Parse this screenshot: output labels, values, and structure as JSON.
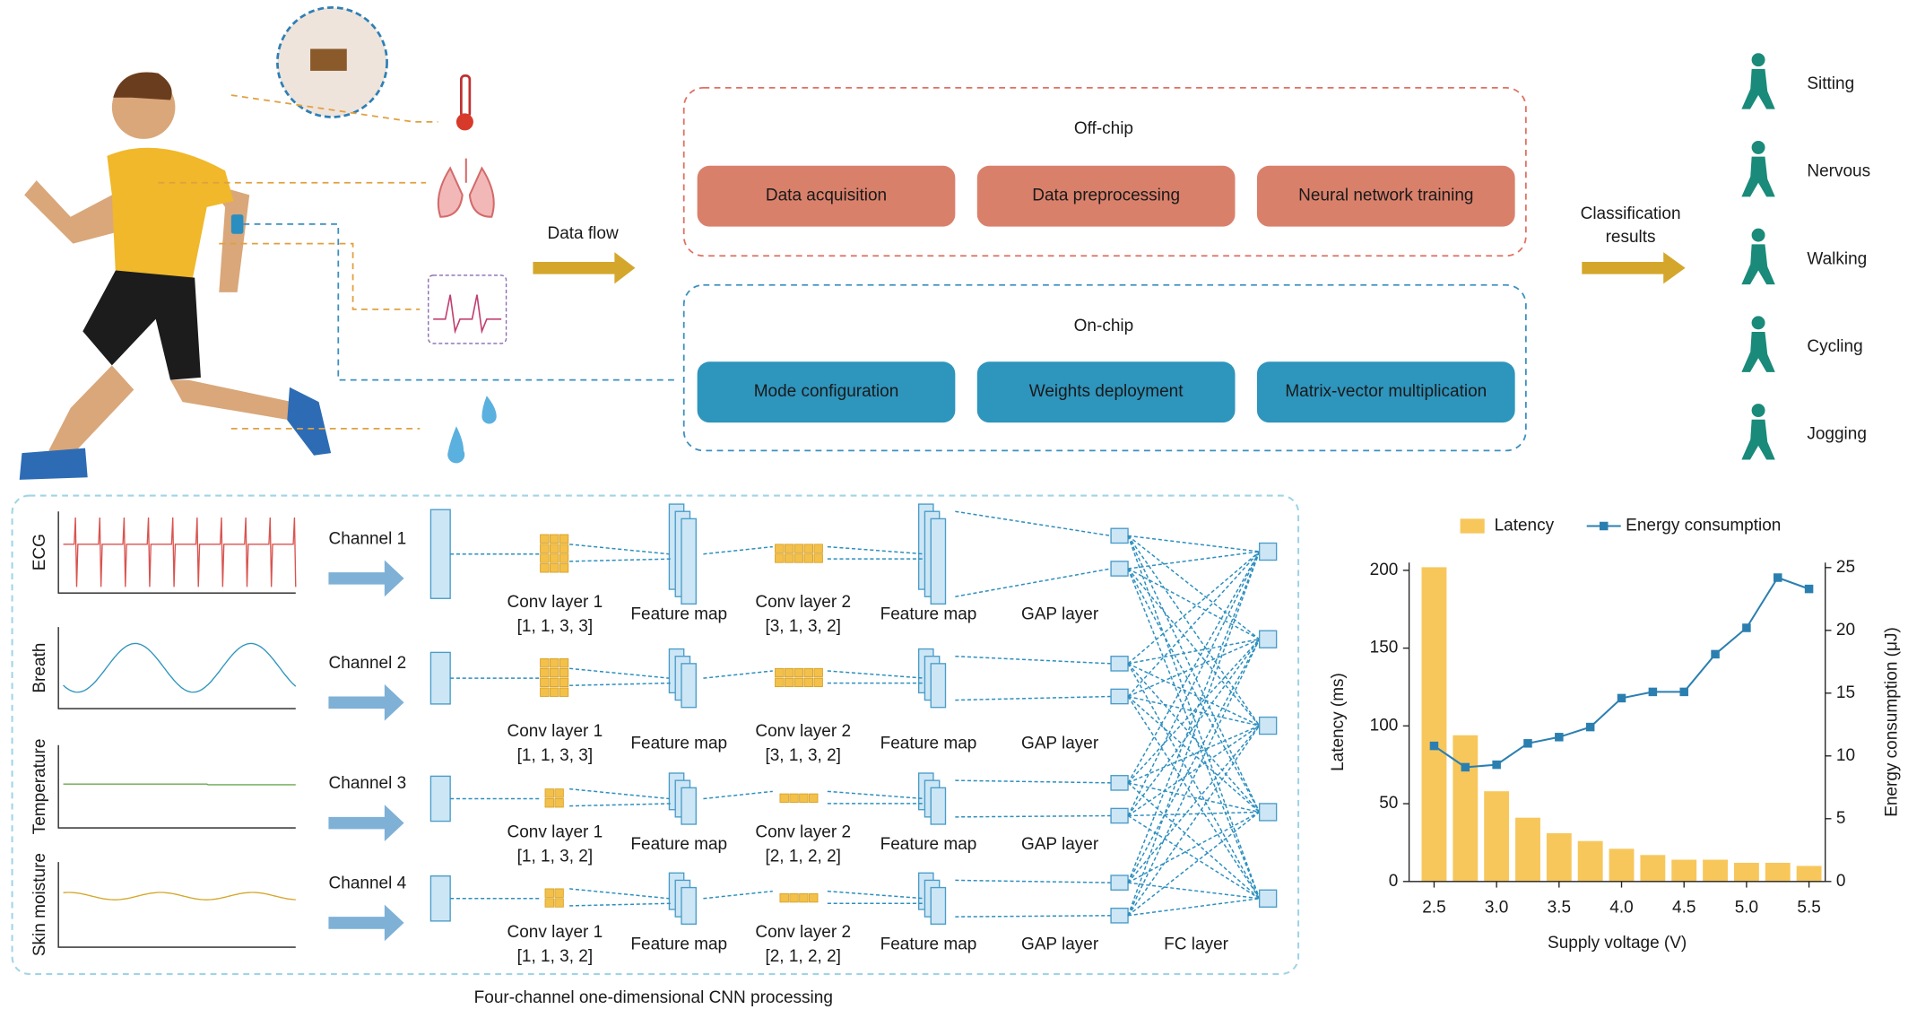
{
  "data_flow": "Data flow",
  "off_chip": {
    "title": "Off-chip",
    "steps": [
      "Data acquisition",
      "Data preprocessing",
      "Neural network training"
    ]
  },
  "on_chip": {
    "title": "On-chip",
    "steps": [
      "Mode configuration",
      "Weights deployment",
      "Matrix-vector multiplication"
    ]
  },
  "classification": {
    "label_lines": [
      "Classification",
      "results"
    ],
    "classes": [
      "Sitting",
      "Nervous",
      "Walking",
      "Cycling",
      "Jogging"
    ]
  },
  "signals": [
    "ECG",
    "Breath",
    "Temperature",
    "Skin moisture"
  ],
  "channels": [
    {
      "name": "Channel 1",
      "conv1": "Conv layer 1",
      "conv1_params": "[1, 1, 3, 3]",
      "feature_map1": "Feature map",
      "conv2": "Conv layer 2",
      "conv2_params": "[3, 1, 3, 2]",
      "feature_map2": "Feature map",
      "gap": "GAP layer"
    },
    {
      "name": "Channel 2",
      "conv1": "Conv layer 1",
      "conv1_params": "[1, 1, 3, 3]",
      "feature_map1": "Feature map",
      "conv2": "Conv layer 2",
      "conv2_params": "[3, 1, 3, 2]",
      "feature_map2": "Feature map",
      "gap": "GAP layer"
    },
    {
      "name": "Channel 3",
      "conv1": "Conv layer 1",
      "conv1_params": "[1, 1, 3, 2]",
      "feature_map1": "Feature map",
      "conv2": "Conv layer 2",
      "conv2_params": "[2, 1, 2, 2]",
      "feature_map2": "Feature map",
      "gap": "GAP layer"
    },
    {
      "name": "Channel 4",
      "conv1": "Conv layer 1",
      "conv1_params": "[1, 1, 3, 2]",
      "feature_map1": "Feature map",
      "conv2": "Conv layer 2",
      "conv2_params": "[2, 1, 2, 2]",
      "feature_map2": "Feature map",
      "gap": "GAP layer"
    }
  ],
  "fc_layer": "FC layer",
  "cnn_caption": "Four-channel one-dimensional CNN processing",
  "chart_data": {
    "type": "bar",
    "x": [
      2.5,
      2.75,
      3.0,
      3.25,
      3.5,
      3.75,
      4.0,
      4.25,
      4.5,
      4.75,
      5.0,
      5.25,
      5.5
    ],
    "series": [
      {
        "name": "Latency",
        "type": "bar",
        "color": "#f7c75c",
        "values": [
          202,
          94,
          58,
          41,
          31,
          26,
          21,
          17,
          14,
          14,
          12,
          12,
          10
        ]
      },
      {
        "name": "Energy consumption",
        "type": "line",
        "axis": "y2",
        "color": "#2b7fb0",
        "values": [
          10.8,
          9.1,
          9.3,
          11.0,
          11.5,
          12.3,
          14.6,
          15.1,
          15.1,
          18.1,
          20.2,
          24.2,
          23.3
        ]
      }
    ],
    "x_label": "Supply voltage (V)",
    "y_label": "Latency (ms)",
    "y2_label": "Energy consumption (μJ)",
    "xlim": [
      2.3,
      5.63
    ],
    "ylim": [
      0,
      205
    ],
    "y2lim": [
      0,
      25.4
    ],
    "xticks": [
      2.5,
      {
        "value": 3,
        "label": "3.0"
      },
      3.5,
      {
        "value": 4,
        "label": "4.0"
      },
      4.5,
      {
        "value": 5,
        "label": "5.0"
      },
      5.5
    ],
    "yticks": [
      0,
      50,
      100,
      150,
      200
    ],
    "y2ticks": [
      0,
      5,
      10,
      15,
      20,
      25
    ],
    "legend": "top"
  }
}
